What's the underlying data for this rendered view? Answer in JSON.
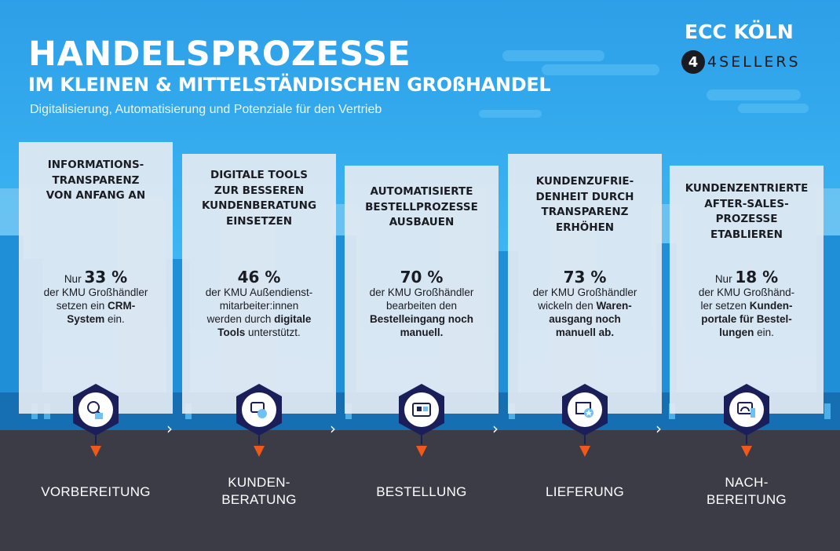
{
  "header": {
    "title": "HANDELSPROZESSE",
    "title_sub": "IM KLEINEN & MITTELSTÄNDISCHEN GROßHANDEL",
    "subtitle": "Digitalisierung, Automatisierung und Potenziale für den Vertrieb",
    "brand": "ECC KÖLN",
    "logo_mark": "4",
    "logo_text": "4SELLERS"
  },
  "colors": {
    "sky": "#2aa6ec",
    "ground": "#3c3c46",
    "card": "#e2e9f2",
    "hex_dark": "#1a1f5a",
    "marker": "#f0581c"
  },
  "cards": [
    {
      "heading": [
        "INFORMATIONS-",
        "TRANSPARENZ",
        "VON ANFANG AN"
      ],
      "stat_prefix": "Nur ",
      "stat_value": "33 %",
      "text": [
        [
          {
            "t": "der KMU Großhändler",
            "b": false
          }
        ],
        [
          {
            "t": "setzen ein ",
            "b": false
          },
          {
            "t": "CRM-",
            "b": true
          }
        ],
        [
          {
            "t": "System",
            "b": true
          },
          {
            "t": " ein.",
            "b": false
          }
        ]
      ],
      "icon": "magnifier-person-icon",
      "stage": [
        "VORBEREITUNG"
      ]
    },
    {
      "heading": [
        "DIGITALE TOOLS",
        "ZUR BESSEREN",
        "KUNDENBERATUNG",
        "EINSETZEN"
      ],
      "stat_prefix": "",
      "stat_value": "46 %",
      "text": [
        [
          {
            "t": "der KMU Außendienst-",
            "b": false
          }
        ],
        [
          {
            "t": "mitarbeiter:innen",
            "b": false
          }
        ],
        [
          {
            "t": "werden durch ",
            "b": false
          },
          {
            "t": "digitale",
            "b": true
          }
        ],
        [
          {
            "t": "Tools",
            "b": true
          },
          {
            "t": " unterstützt.",
            "b": false
          }
        ]
      ],
      "icon": "chat-bubbles-icon",
      "stage": [
        "KUNDEN-",
        "BERATUNG"
      ]
    },
    {
      "heading": [
        "AUTOMATISIERTE",
        "BESTELLPROZESSE",
        "AUSBAUEN"
      ],
      "stat_prefix": "",
      "stat_value": "70 %",
      "text": [
        [
          {
            "t": "der KMU Großhändler",
            "b": false
          }
        ],
        [
          {
            "t": "bearbeiten den",
            "b": false
          }
        ],
        [
          {
            "t": "Bestelleingang noch",
            "b": true
          }
        ],
        [
          {
            "t": "manuell.",
            "b": true
          }
        ]
      ],
      "icon": "online-shop-icon",
      "stage": [
        "BESTELLUNG"
      ]
    },
    {
      "heading": [
        "KUNDENZUFRIE-",
        "DENHEIT DURCH",
        "TRANSPARENZ",
        "ERHÖHEN"
      ],
      "stat_prefix": "",
      "stat_value": "73 %",
      "text": [
        [
          {
            "t": "der KMU Großhändler",
            "b": false
          }
        ],
        [
          {
            "t": "wickeln den ",
            "b": false
          },
          {
            "t": "Waren-",
            "b": true
          }
        ],
        [
          {
            "t": "ausgang noch",
            "b": true
          }
        ],
        [
          {
            "t": "manuell ab.",
            "b": true
          }
        ]
      ],
      "icon": "delivery-box-star-icon",
      "stage": [
        "LIEFERUNG"
      ]
    },
    {
      "heading": [
        "KUNDENZENTRIERTE",
        "AFTER-SALES-",
        "PROZESSE",
        "ETABLIEREN"
      ],
      "stat_prefix": "Nur ",
      "stat_value": "18 %",
      "text": [
        [
          {
            "t": "der KMU Großhänd-",
            "b": false
          }
        ],
        [
          {
            "t": "ler setzen ",
            "b": false
          },
          {
            "t": "Kunden-",
            "b": true
          }
        ],
        [
          {
            "t": "portale für Bestel-",
            "b": true
          }
        ],
        [
          {
            "t": "lungen",
            "b": true
          },
          {
            "t": " ein.",
            "b": false
          }
        ]
      ],
      "icon": "dashboard-monitor-icon",
      "stage": [
        "NACH-",
        "BEREITUNG"
      ]
    }
  ],
  "arrow_glyph": "›"
}
